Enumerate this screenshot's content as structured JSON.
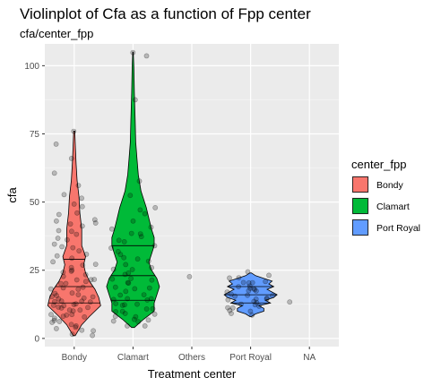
{
  "chart_data": {
    "type": "violin",
    "title": "Violinplot of Cfa as a function of Fpp center",
    "subtitle": "cfa/center_fpp",
    "xlabel": "Treatment center",
    "ylabel": "cfa",
    "categories": [
      "Bondy",
      "Clamart",
      "Others",
      "Port Royal",
      "NA"
    ],
    "ylim": [
      -3,
      108
    ],
    "yticks": [
      0,
      25,
      50,
      75,
      100
    ],
    "grid": true,
    "legend": {
      "title": "center_fpp",
      "position": "right",
      "items": [
        {
          "label": "Bondy",
          "color": "#F8766D"
        },
        {
          "label": "Clamart",
          "color": "#00BA38"
        },
        {
          "label": "Port Royal",
          "color": "#619CFF"
        }
      ]
    },
    "violins": [
      {
        "category": "Bondy",
        "color": "#F8766D",
        "quantiles": [
          13,
          19,
          29
        ],
        "profile": [
          [
            1,
            0.5
          ],
          [
            5,
            4
          ],
          [
            8,
            8
          ],
          [
            12,
            14
          ],
          [
            15,
            13
          ],
          [
            18,
            11
          ],
          [
            21,
            8
          ],
          [
            24,
            6
          ],
          [
            27,
            5
          ],
          [
            30,
            6
          ],
          [
            34,
            4
          ],
          [
            40,
            4
          ],
          [
            46,
            3
          ],
          [
            52,
            2.5
          ],
          [
            58,
            1.5
          ],
          [
            64,
            1
          ],
          [
            70,
            0.6
          ],
          [
            76,
            0.3
          ]
        ]
      },
      {
        "category": "Clamart",
        "color": "#00BA38",
        "quantiles": [
          14,
          23,
          34
        ],
        "profile": [
          [
            4,
            0.5
          ],
          [
            7,
            4
          ],
          [
            10,
            8
          ],
          [
            13,
            8
          ],
          [
            16,
            9
          ],
          [
            19,
            10
          ],
          [
            22,
            9
          ],
          [
            25,
            7
          ],
          [
            28,
            6
          ],
          [
            31,
            7
          ],
          [
            34,
            8
          ],
          [
            37,
            8
          ],
          [
            40,
            7
          ],
          [
            44,
            6
          ],
          [
            48,
            5
          ],
          [
            54,
            3
          ],
          [
            60,
            2
          ],
          [
            66,
            1.5
          ],
          [
            72,
            1
          ],
          [
            80,
            0.8
          ],
          [
            90,
            0.5
          ],
          [
            100,
            0.3
          ],
          [
            105,
            0.1
          ]
        ]
      },
      {
        "category": "Port Royal",
        "color": "#619CFF",
        "quantiles": [
          13,
          16,
          19
        ],
        "profile": [
          [
            8,
            0.5
          ],
          [
            9,
            3
          ],
          [
            10,
            8
          ],
          [
            11,
            8
          ],
          [
            12,
            5
          ],
          [
            13,
            12
          ],
          [
            14,
            9
          ],
          [
            15,
            14
          ],
          [
            16,
            16
          ],
          [
            17,
            13
          ],
          [
            18,
            10
          ],
          [
            19,
            14
          ],
          [
            20,
            11
          ],
          [
            21,
            13
          ],
          [
            22,
            8
          ],
          [
            23,
            3
          ],
          [
            24,
            0.5
          ]
        ]
      }
    ],
    "points": {
      "Bondy": [
        76,
        71,
        66,
        61,
        56,
        53,
        51,
        49,
        48,
        46,
        45,
        44,
        43,
        42,
        42,
        41,
        40,
        39,
        38,
        37,
        36,
        35,
        34,
        33,
        32,
        31,
        30,
        29,
        28,
        27,
        27,
        26,
        25,
        25,
        24,
        23,
        23,
        22,
        22,
        21,
        21,
        20,
        20,
        19,
        19,
        18,
        18,
        17,
        17,
        16,
        16,
        15,
        15,
        15,
        14,
        14,
        14,
        13,
        13,
        13,
        12,
        12,
        12,
        11,
        11,
        11,
        10,
        10,
        10,
        9,
        9,
        9,
        8,
        8,
        7,
        7,
        6,
        6,
        5,
        5,
        4,
        4,
        3,
        3,
        2,
        1
      ],
      "Clamart": [
        105,
        104,
        88,
        58,
        52,
        48,
        47,
        46,
        43,
        41,
        40,
        39,
        38,
        37,
        36,
        35,
        34,
        33,
        32,
        31,
        30,
        29,
        28,
        27,
        26,
        25,
        25,
        24,
        23,
        22,
        22,
        21,
        20,
        20,
        19,
        18,
        18,
        17,
        16,
        16,
        15,
        15,
        14,
        14,
        13,
        13,
        12,
        12,
        11,
        11,
        10,
        10,
        9,
        9,
        8,
        8,
        7,
        7,
        6,
        6,
        5,
        5
      ],
      "Others": [
        23
      ],
      "Port Royal": [
        24,
        23,
        22,
        22,
        21,
        21,
        20,
        20,
        19,
        19,
        18,
        18,
        18,
        17,
        17,
        17,
        16,
        16,
        16,
        15,
        15,
        15,
        14,
        14,
        14,
        13,
        13,
        12,
        12,
        11,
        11,
        10,
        10,
        9,
        9
      ],
      "NA": [
        13
      ]
    }
  }
}
